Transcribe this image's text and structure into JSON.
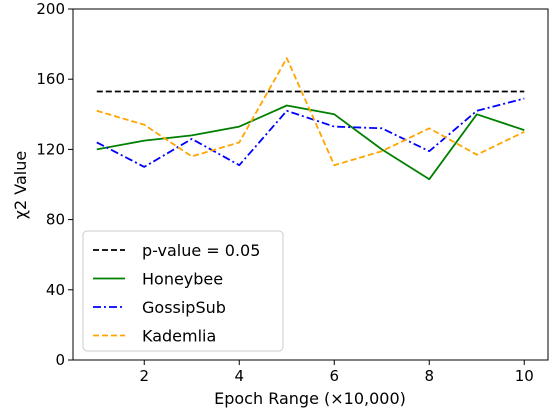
{
  "chart_data": {
    "type": "line",
    "title": "",
    "xlabel": "Epoch Range (×10,000)",
    "ylabel": "χ2 Value",
    "xlim": [
      0.5,
      10.5
    ],
    "ylim": [
      0,
      200
    ],
    "xticks": [
      2,
      4,
      6,
      8,
      10
    ],
    "yticks": [
      0,
      40,
      80,
      120,
      160,
      200
    ],
    "grid": false,
    "legend_position": "lower-left",
    "x": [
      1,
      2,
      3,
      4,
      5,
      6,
      7,
      8,
      9,
      10
    ],
    "series": [
      {
        "name": "p-value = 0.05",
        "color": "#000000",
        "style": "dashed",
        "values": [
          153,
          153,
          153,
          153,
          153,
          153,
          153,
          153,
          153,
          153
        ]
      },
      {
        "name": "Honeybee",
        "color": "#008000",
        "style": "solid",
        "values": [
          120,
          125,
          128,
          133,
          145,
          140,
          120,
          103,
          140,
          131
        ]
      },
      {
        "name": "GossipSub",
        "color": "#0000ff",
        "style": "dashdot",
        "values": [
          124,
          110,
          126,
          111,
          142,
          133,
          132,
          119,
          142,
          149
        ]
      },
      {
        "name": "Kademlia",
        "color": "#ffa500",
        "style": "dashed",
        "values": [
          142,
          134,
          116,
          124,
          172,
          111,
          119,
          132,
          117,
          130
        ]
      }
    ]
  }
}
